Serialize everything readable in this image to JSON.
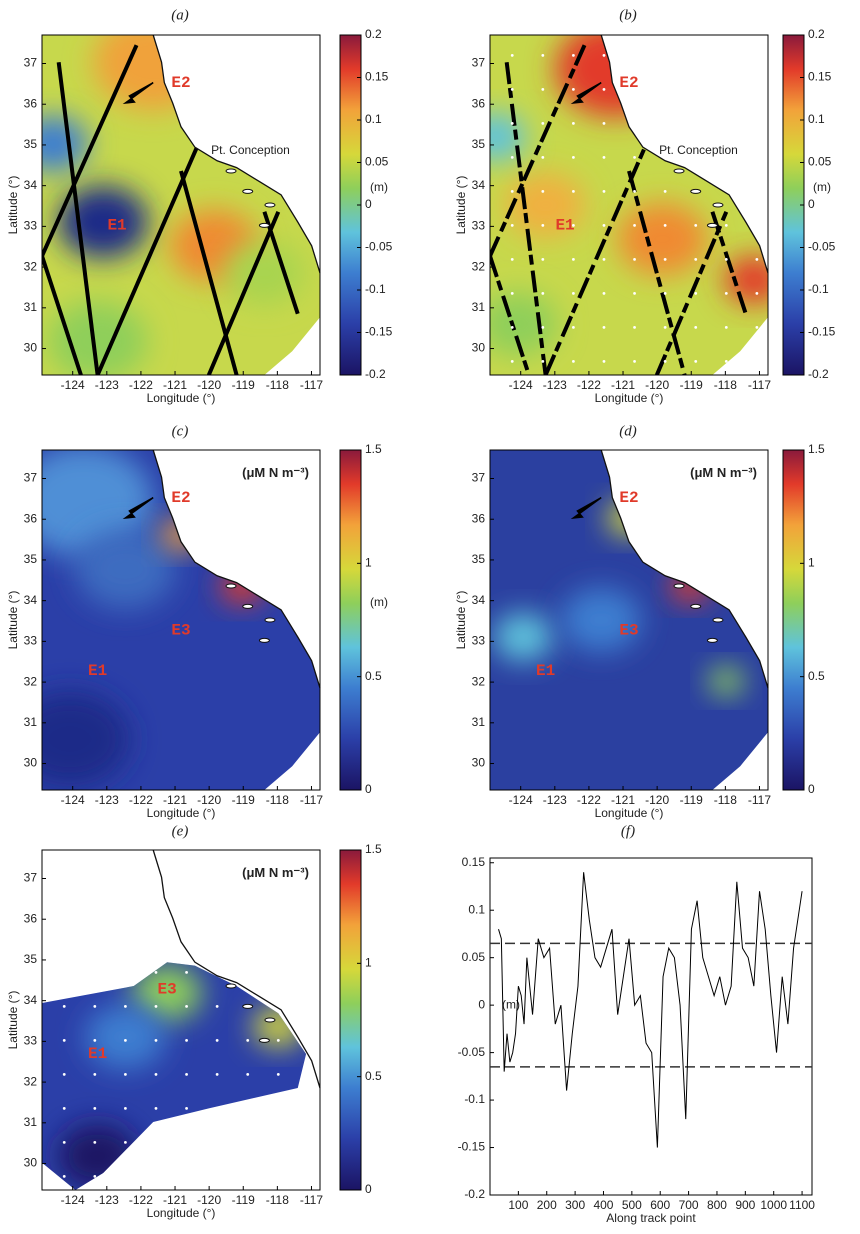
{
  "chart_data": [
    {
      "type": "map",
      "panel": "(a)",
      "xlabel": "Longitude (°)",
      "ylabel": "Latitude (°)",
      "xlim": [
        -124.9,
        -116.75
      ],
      "ylim": [
        29.35,
        37.7
      ],
      "xticks": [
        -124,
        -123,
        -122,
        -121,
        -120,
        -119,
        -118,
        -117
      ],
      "yticks": [
        30,
        31,
        32,
        33,
        34,
        35,
        36,
        37
      ],
      "colorbar": {
        "lim": [
          -0.2,
          0.2
        ],
        "ticks": [
          -0.2,
          -0.15,
          -0.1,
          -0.05,
          0,
          0.05,
          0.1,
          0.15,
          0.2
        ],
        "label": "(m)"
      },
      "annotations": [
        "E2",
        "E1",
        "Pt. Conception"
      ]
    },
    {
      "type": "map",
      "panel": "(b)",
      "xlabel": "Longitude (°)",
      "ylabel": "Latitude (°)",
      "xlim": [
        -124.9,
        -116.75
      ],
      "ylim": [
        29.35,
        37.7
      ],
      "xticks": [
        -124,
        -123,
        -122,
        -121,
        -120,
        -119,
        -118,
        -117
      ],
      "yticks": [
        30,
        31,
        32,
        33,
        34,
        35,
        36,
        37
      ],
      "colorbar": {
        "lim": [
          -0.2,
          0.2
        ],
        "ticks": [
          -0.2,
          -0.15,
          -0.1,
          -0.05,
          0,
          0.05,
          0.1,
          0.15,
          0.2
        ],
        "label": "(m)"
      },
      "annotations": [
        "E2",
        "E1",
        "Pt. Conception"
      ]
    },
    {
      "type": "map",
      "panel": "(c)",
      "xlabel": "Longitude (°)",
      "ylabel": "Latitude (°)",
      "xlim": [
        -124.9,
        -116.75
      ],
      "ylim": [
        29.35,
        37.7
      ],
      "xticks": [
        -124,
        -123,
        -122,
        -121,
        -120,
        -119,
        -118,
        -117
      ],
      "yticks": [
        30,
        31,
        32,
        33,
        34,
        35,
        36,
        37
      ],
      "colorbar": {
        "lim": [
          0,
          1.5
        ],
        "ticks": [
          0,
          0.5,
          1,
          1.5
        ],
        "label": "(m)"
      },
      "annotations": [
        "(μM N m⁻³)",
        "E2",
        "E3",
        "E1"
      ]
    },
    {
      "type": "map",
      "panel": "(d)",
      "xlabel": "Longitude (°)",
      "ylabel": "Latitude (°)",
      "xlim": [
        -124.9,
        -116.75
      ],
      "ylim": [
        29.35,
        37.7
      ],
      "xticks": [
        -124,
        -123,
        -122,
        -121,
        -120,
        -119,
        -118,
        -117
      ],
      "yticks": [
        30,
        31,
        32,
        33,
        34,
        35,
        36,
        37
      ],
      "colorbar": {
        "lim": [
          0,
          1.5
        ],
        "ticks": [
          0,
          0.5,
          1,
          1.5
        ]
      },
      "annotations": [
        "(μM N m⁻³)",
        "E2",
        "E3",
        "E1"
      ]
    },
    {
      "type": "map",
      "panel": "(e)",
      "xlabel": "Longitude (°)",
      "ylabel": "Latitude (°)",
      "xlim": [
        -124.9,
        -116.75
      ],
      "ylim": [
        29.35,
        37.7
      ],
      "xticks": [
        -124,
        -123,
        -122,
        -121,
        -120,
        -119,
        -118,
        -117
      ],
      "yticks": [
        30,
        31,
        32,
        33,
        34,
        35,
        36,
        37
      ],
      "colorbar": {
        "lim": [
          0,
          1.5
        ],
        "ticks": [
          0,
          0.5,
          1,
          1.5
        ]
      },
      "annotations": [
        "(μM N m⁻³)",
        "E3",
        "E1"
      ]
    },
    {
      "type": "line",
      "panel": "(f)",
      "xlabel": "Along track point",
      "ylabel": "(m)",
      "color": "#000000",
      "xlim": [
        0,
        1135
      ],
      "ylim": [
        -0.2,
        0.155
      ],
      "xticks": [
        100,
        200,
        300,
        400,
        500,
        600,
        700,
        800,
        900,
        1000,
        1100
      ],
      "yticks": [
        -0.2,
        -0.15,
        -0.1,
        -0.05,
        0,
        0.05,
        0.1,
        0.15
      ],
      "hlines": [
        0.065,
        -0.065
      ],
      "x": [
        30,
        40,
        50,
        60,
        70,
        80,
        90,
        100,
        110,
        120,
        130,
        150,
        170,
        190,
        210,
        230,
        250,
        270,
        290,
        310,
        330,
        350,
        370,
        390,
        410,
        430,
        450,
        470,
        490,
        510,
        530,
        550,
        570,
        590,
        610,
        630,
        650,
        670,
        690,
        710,
        730,
        750,
        770,
        790,
        810,
        830,
        850,
        870,
        890,
        910,
        930,
        950,
        970,
        990,
        1010,
        1030,
        1050,
        1070,
        1090,
        1100
      ],
      "values": [
        0.08,
        0.07,
        -0.07,
        -0.03,
        -0.06,
        -0.05,
        -0.03,
        0.02,
        0.01,
        -0.02,
        0.05,
        -0.01,
        0.07,
        0.05,
        0.06,
        -0.02,
        0.0,
        -0.09,
        -0.03,
        0.02,
        0.14,
        0.09,
        0.05,
        0.04,
        0.06,
        0.08,
        -0.01,
        0.03,
        0.07,
        0.0,
        0.01,
        -0.04,
        -0.05,
        -0.15,
        0.03,
        0.06,
        0.05,
        0.0,
        -0.12,
        0.08,
        0.11,
        0.05,
        0.03,
        0.01,
        0.03,
        0.0,
        0.02,
        0.13,
        0.06,
        0.05,
        0.02,
        0.12,
        0.08,
        0.01,
        -0.05,
        0.03,
        -0.02,
        0.06,
        0.1,
        0.12
      ]
    }
  ]
}
